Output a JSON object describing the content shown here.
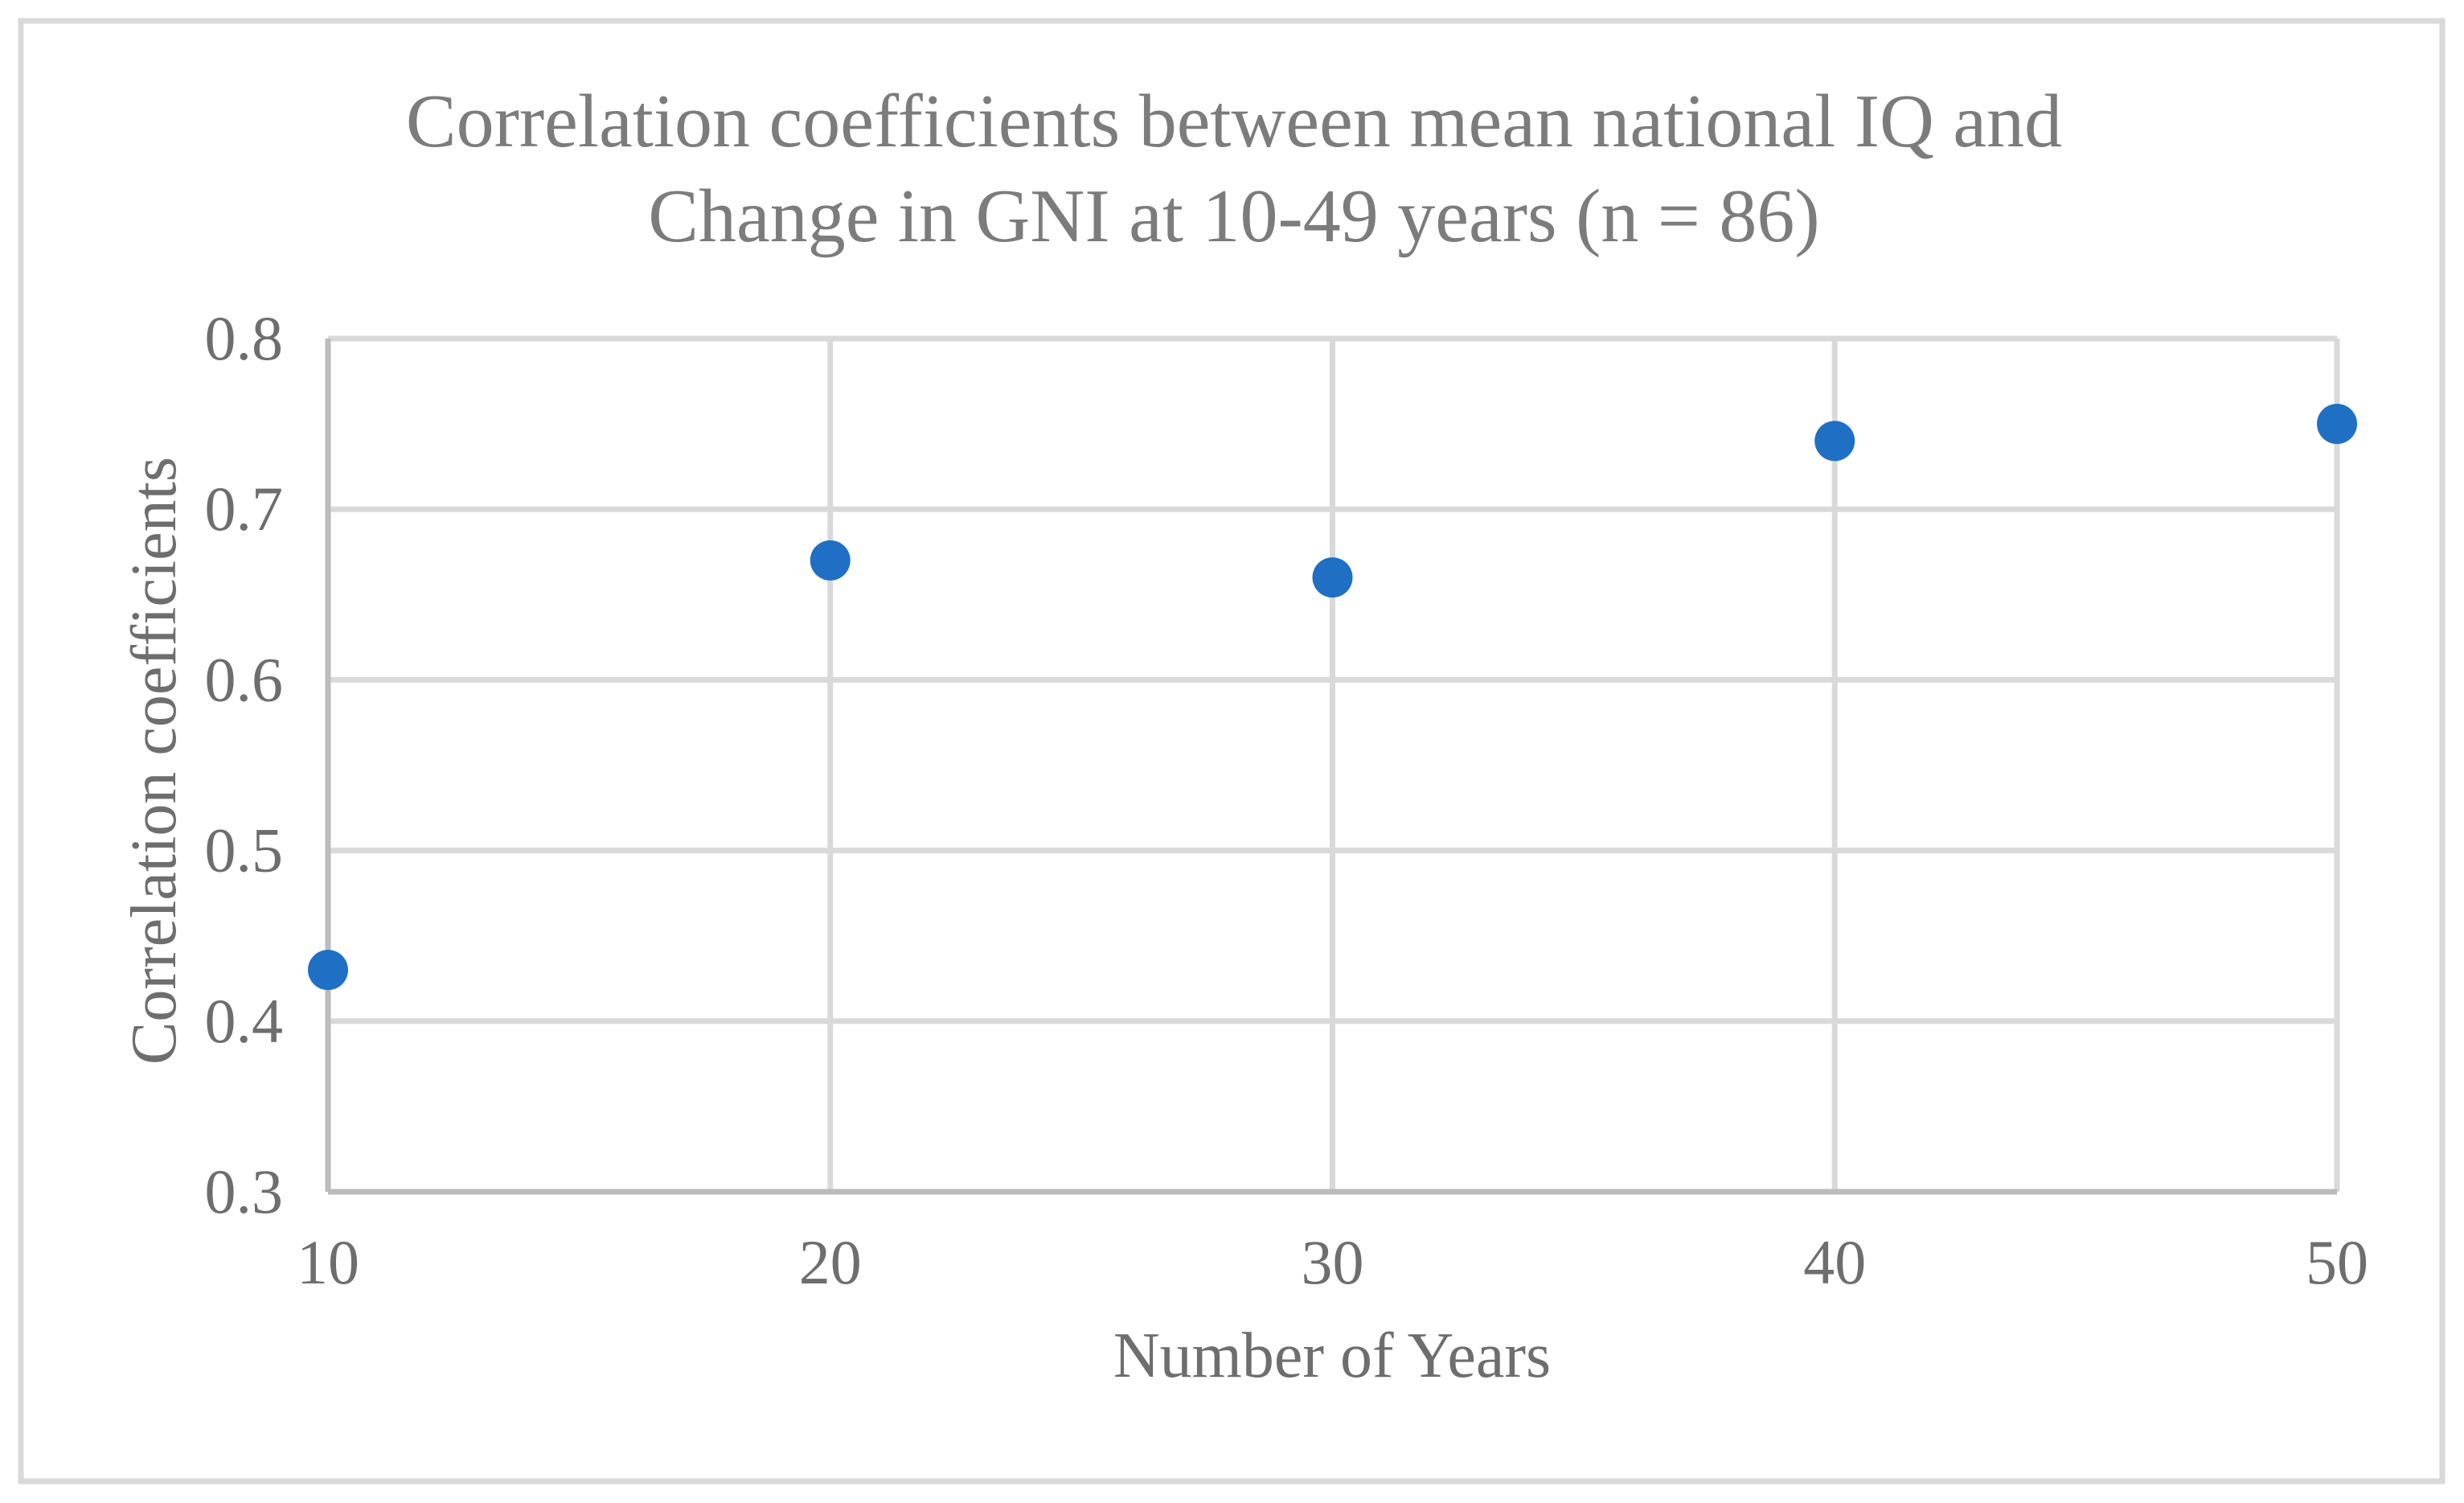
{
  "chart_data": {
    "type": "scatter",
    "title": "Correlation coefficients between mean national IQ and Change in GNI at 10-49 years (n = 86)",
    "title_lines": [
      "Correlation coefficients between mean national IQ and",
      "Change in GNI at 10-49 years (n = 86)"
    ],
    "xlabel": "Number of Years",
    "ylabel": "Correlation coefficients",
    "x": [
      10,
      20,
      30,
      40,
      50
    ],
    "y": [
      0.43,
      0.67,
      0.66,
      0.74,
      0.75
    ],
    "xlim": [
      10,
      50
    ],
    "ylim": [
      0.3,
      0.8
    ],
    "x_ticks": [
      "10",
      "20",
      "30",
      "40",
      "50"
    ],
    "y_ticks": [
      "0.3",
      "0.4",
      "0.5",
      "0.6",
      "0.7",
      "0.8"
    ],
    "grid": true,
    "legend": "none",
    "n": 86
  },
  "colors": {
    "marker": "#1F6FC5",
    "gridline": "#D9D9D9",
    "axis_line": "#BBBBBB",
    "tick_text": "#6E6E6E",
    "axis_title_text": "#6E6E6E",
    "title_text": "#7C7C7C",
    "figure_border": "#D9D9D9",
    "background": "#FFFFFF"
  }
}
